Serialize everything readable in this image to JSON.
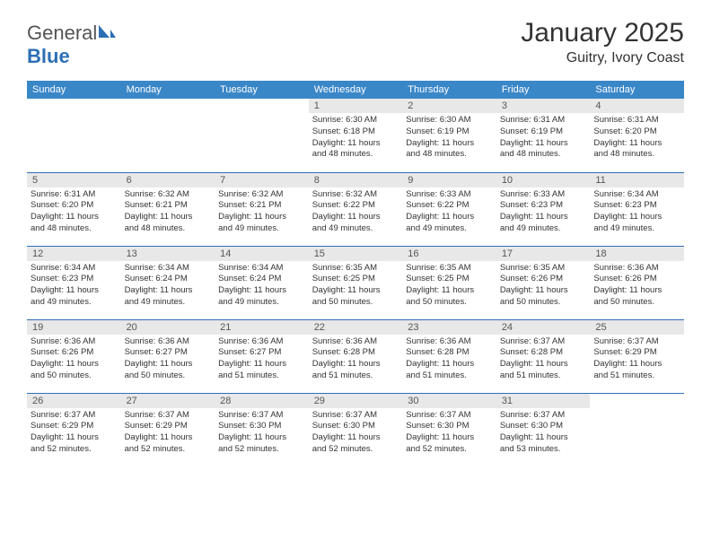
{
  "logo": {
    "text1": "General",
    "text2": "Blue"
  },
  "title": "January 2025",
  "location": "Guitry, Ivory Coast",
  "colors": {
    "header_bg": "#3a87c8",
    "header_fg": "#ffffff",
    "daynum_bg": "#e8e8e8",
    "daynum_fg": "#555555",
    "border": "#2d6fb5",
    "text": "#333333",
    "logo_accent": "#2d6fb5",
    "logo_gray": "#555555",
    "background": "#ffffff"
  },
  "weekdays": [
    "Sunday",
    "Monday",
    "Tuesday",
    "Wednesday",
    "Thursday",
    "Friday",
    "Saturday"
  ],
  "weeks": [
    [
      null,
      null,
      null,
      {
        "n": "1",
        "sunrise": "6:30 AM",
        "sunset": "6:18 PM",
        "dh": "11",
        "dm": "48"
      },
      {
        "n": "2",
        "sunrise": "6:30 AM",
        "sunset": "6:19 PM",
        "dh": "11",
        "dm": "48"
      },
      {
        "n": "3",
        "sunrise": "6:31 AM",
        "sunset": "6:19 PM",
        "dh": "11",
        "dm": "48"
      },
      {
        "n": "4",
        "sunrise": "6:31 AM",
        "sunset": "6:20 PM",
        "dh": "11",
        "dm": "48"
      }
    ],
    [
      {
        "n": "5",
        "sunrise": "6:31 AM",
        "sunset": "6:20 PM",
        "dh": "11",
        "dm": "48"
      },
      {
        "n": "6",
        "sunrise": "6:32 AM",
        "sunset": "6:21 PM",
        "dh": "11",
        "dm": "48"
      },
      {
        "n": "7",
        "sunrise": "6:32 AM",
        "sunset": "6:21 PM",
        "dh": "11",
        "dm": "49"
      },
      {
        "n": "8",
        "sunrise": "6:32 AM",
        "sunset": "6:22 PM",
        "dh": "11",
        "dm": "49"
      },
      {
        "n": "9",
        "sunrise": "6:33 AM",
        "sunset": "6:22 PM",
        "dh": "11",
        "dm": "49"
      },
      {
        "n": "10",
        "sunrise": "6:33 AM",
        "sunset": "6:23 PM",
        "dh": "11",
        "dm": "49"
      },
      {
        "n": "11",
        "sunrise": "6:34 AM",
        "sunset": "6:23 PM",
        "dh": "11",
        "dm": "49"
      }
    ],
    [
      {
        "n": "12",
        "sunrise": "6:34 AM",
        "sunset": "6:23 PM",
        "dh": "11",
        "dm": "49"
      },
      {
        "n": "13",
        "sunrise": "6:34 AM",
        "sunset": "6:24 PM",
        "dh": "11",
        "dm": "49"
      },
      {
        "n": "14",
        "sunrise": "6:34 AM",
        "sunset": "6:24 PM",
        "dh": "11",
        "dm": "49"
      },
      {
        "n": "15",
        "sunrise": "6:35 AM",
        "sunset": "6:25 PM",
        "dh": "11",
        "dm": "50"
      },
      {
        "n": "16",
        "sunrise": "6:35 AM",
        "sunset": "6:25 PM",
        "dh": "11",
        "dm": "50"
      },
      {
        "n": "17",
        "sunrise": "6:35 AM",
        "sunset": "6:26 PM",
        "dh": "11",
        "dm": "50"
      },
      {
        "n": "18",
        "sunrise": "6:36 AM",
        "sunset": "6:26 PM",
        "dh": "11",
        "dm": "50"
      }
    ],
    [
      {
        "n": "19",
        "sunrise": "6:36 AM",
        "sunset": "6:26 PM",
        "dh": "11",
        "dm": "50"
      },
      {
        "n": "20",
        "sunrise": "6:36 AM",
        "sunset": "6:27 PM",
        "dh": "11",
        "dm": "50"
      },
      {
        "n": "21",
        "sunrise": "6:36 AM",
        "sunset": "6:27 PM",
        "dh": "11",
        "dm": "51"
      },
      {
        "n": "22",
        "sunrise": "6:36 AM",
        "sunset": "6:28 PM",
        "dh": "11",
        "dm": "51"
      },
      {
        "n": "23",
        "sunrise": "6:36 AM",
        "sunset": "6:28 PM",
        "dh": "11",
        "dm": "51"
      },
      {
        "n": "24",
        "sunrise": "6:37 AM",
        "sunset": "6:28 PM",
        "dh": "11",
        "dm": "51"
      },
      {
        "n": "25",
        "sunrise": "6:37 AM",
        "sunset": "6:29 PM",
        "dh": "11",
        "dm": "51"
      }
    ],
    [
      {
        "n": "26",
        "sunrise": "6:37 AM",
        "sunset": "6:29 PM",
        "dh": "11",
        "dm": "52"
      },
      {
        "n": "27",
        "sunrise": "6:37 AM",
        "sunset": "6:29 PM",
        "dh": "11",
        "dm": "52"
      },
      {
        "n": "28",
        "sunrise": "6:37 AM",
        "sunset": "6:30 PM",
        "dh": "11",
        "dm": "52"
      },
      {
        "n": "29",
        "sunrise": "6:37 AM",
        "sunset": "6:30 PM",
        "dh": "11",
        "dm": "52"
      },
      {
        "n": "30",
        "sunrise": "6:37 AM",
        "sunset": "6:30 PM",
        "dh": "11",
        "dm": "52"
      },
      {
        "n": "31",
        "sunrise": "6:37 AM",
        "sunset": "6:30 PM",
        "dh": "11",
        "dm": "53"
      },
      null
    ]
  ]
}
